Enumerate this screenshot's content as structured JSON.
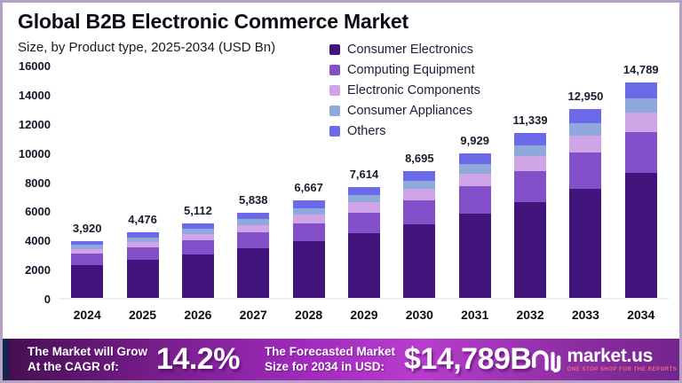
{
  "header": {
    "title": "Global B2B Electronic Commerce Market",
    "subtitle": "Size, by Product type, 2025-2034 (USD Bn)"
  },
  "chart_data": {
    "type": "bar",
    "stacked": true,
    "title": "Global B2B Electronic Commerce Market",
    "subtitle": "Size, by Product type, 2025-2034 (USD Bn)",
    "unit": "USD Bn",
    "categories": [
      "2024",
      "2025",
      "2026",
      "2027",
      "2028",
      "2029",
      "2030",
      "2031",
      "2032",
      "2033",
      "2034"
    ],
    "totals": [
      3920,
      4476,
      5112,
      5838,
      6667,
      7614,
      8695,
      9929,
      11339,
      12950,
      14789
    ],
    "total_labels": [
      "3,920",
      "4,476",
      "5,112",
      "5,838",
      "6,667",
      "7,614",
      "8,695",
      "9,929",
      "11,339",
      "12,950",
      "14,789"
    ],
    "series": [
      {
        "name": "Consumer Electronics",
        "color": "#42157d",
        "values": [
          2274,
          2596,
          2965,
          3386,
          3867,
          4416,
          5043,
          5759,
          6577,
          7511,
          8578
        ]
      },
      {
        "name": "Computing Equipment",
        "color": "#8450c9",
        "values": [
          745,
          850,
          971,
          1109,
          1267,
          1447,
          1652,
          1887,
          2154,
          2461,
          2810
        ]
      },
      {
        "name": "Electronic Components",
        "color": "#cfa5e8",
        "values": [
          353,
          403,
          460,
          525,
          600,
          685,
          783,
          894,
          1021,
          1166,
          1331
        ]
      },
      {
        "name": "Consumer Appliances",
        "color": "#8fa9dc",
        "values": [
          255,
          291,
          332,
          379,
          433,
          495,
          565,
          645,
          737,
          842,
          961
        ]
      },
      {
        "name": "Others",
        "color": "#6c6ae8",
        "values": [
          293,
          336,
          384,
          439,
          500,
          571,
          652,
          744,
          850,
          970,
          1109
        ]
      }
    ],
    "ylim": [
      0,
      16000
    ],
    "yticks": [
      0,
      2000,
      4000,
      6000,
      8000,
      10000,
      12000,
      14000,
      16000
    ],
    "grid": false,
    "legend_position": "top-right"
  },
  "banner": {
    "cagr_label_line1": "The Market will Grow",
    "cagr_label_line2": "At the CAGR of:",
    "cagr_value": "14.2%",
    "forecast_label_line1": "The Forecasted Market",
    "forecast_label_line2": "Size for 2034 in USD:",
    "forecast_value": "$14,789B",
    "brand": "market.us",
    "brand_tagline": "ONE STOP SHOP FOR THE REPORTS"
  },
  "colors": {
    "frame_border": "#b4a2c4",
    "banner_left_stripe": "#16254f",
    "banner_gradient_start": "#440e50",
    "banner_gradient_mid": "#b93ccf",
    "banner_gradient_end": "#73258c",
    "baseline": "#ececf2"
  }
}
